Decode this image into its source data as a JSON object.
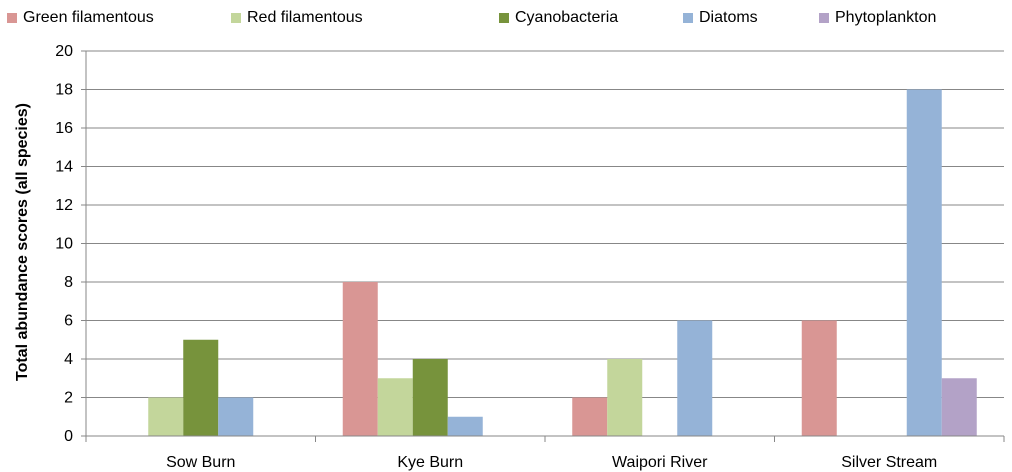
{
  "chart_data": {
    "type": "bar",
    "categories": [
      "Sow Burn",
      "Kye Burn",
      "Waipori River",
      "Silver Stream"
    ],
    "series": [
      {
        "name": "Green filamentous",
        "color": "#d99694",
        "values": [
          0,
          8,
          2,
          6
        ]
      },
      {
        "name": "Red filamentous",
        "color": "#c3d69b",
        "values": [
          2,
          3,
          4,
          0
        ]
      },
      {
        "name": "Cyanobacteria",
        "color": "#77933c",
        "values": [
          5,
          4,
          0,
          0
        ]
      },
      {
        "name": "Diatoms",
        "color": "#95b3d7",
        "values": [
          2,
          1,
          6,
          18
        ]
      },
      {
        "name": "Phytoplankton",
        "color": "#b3a2c7",
        "values": [
          0,
          0,
          0,
          3
        ]
      }
    ],
    "ylabel": "Total abundance scores (all species)",
    "xlabel": "",
    "ylim": [
      0,
      20
    ],
    "yticks": [
      0,
      2,
      4,
      6,
      8,
      10,
      12,
      14,
      16,
      18,
      20
    ],
    "grid": true,
    "legend_position": "top"
  }
}
